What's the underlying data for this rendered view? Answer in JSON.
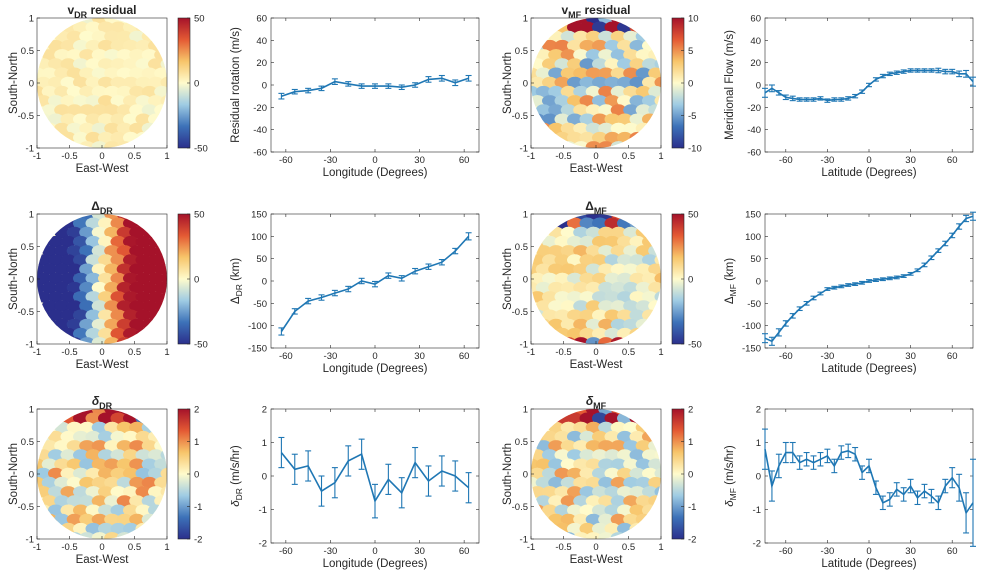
{
  "chart_data": [
    {
      "id": "vdr-map",
      "type": "heatmap",
      "title": "v",
      "title_sub": "DR",
      "title_suffix": " residual",
      "xlabel": "East-West",
      "ylabel": "South-North",
      "xticks": [
        "-1",
        "-0.5",
        "0",
        "0.5",
        "1"
      ],
      "yticks": [
        "1",
        "0.5",
        "0",
        "-0.5",
        "-1"
      ],
      "colorbar": {
        "min": -50,
        "max": 50,
        "ticks": [
          "50",
          "0",
          "-50"
        ]
      },
      "pattern": "uniform",
      "amplitude": 0.12,
      "bias": 0.06
    },
    {
      "id": "vdr-line",
      "type": "line",
      "ylabel": "Residual rotation (m/s)",
      "xlabel": "Longitude (Degrees)",
      "xlim": [
        -70,
        70
      ],
      "ylim": [
        -60,
        60
      ],
      "xticks": [
        -60,
        -30,
        0,
        30,
        60
      ],
      "yticks": [
        60,
        40,
        20,
        0,
        -20,
        -40,
        -60
      ],
      "x": [
        -63,
        -54,
        -45,
        -36,
        -27,
        -18,
        -9,
        0,
        9,
        18,
        27,
        36,
        45,
        54,
        63
      ],
      "y": [
        -10,
        -6,
        -5,
        -3,
        3,
        1,
        -1,
        -1,
        -1,
        -2,
        0,
        5,
        6,
        2,
        6
      ],
      "err": [
        2.5,
        2,
        2,
        2,
        2.5,
        2,
        2,
        2,
        2,
        2,
        2,
        2.5,
        2.5,
        2.5,
        2.5
      ]
    },
    {
      "id": "vmf-map",
      "type": "heatmap",
      "title": "v",
      "title_sub": "MF",
      "title_suffix": " residual",
      "xlabel": "East-West",
      "ylabel": "South-North",
      "xticks": [
        "-1",
        "-0.5",
        "0",
        "0.5",
        "1"
      ],
      "yticks": [
        "1",
        "0.5",
        "0",
        "-0.5",
        "-1"
      ],
      "colorbar": {
        "min": -10,
        "max": 10,
        "ticks": [
          "10",
          "5",
          "0",
          "-5",
          "-10"
        ]
      },
      "pattern": "noisy",
      "amplitude": 0.55,
      "bias": 0
    },
    {
      "id": "vmf-line",
      "type": "line",
      "ylabel": "Meridional Flow (m/s)",
      "xlabel": "Latitude (Degrees)",
      "xlim": [
        -75,
        75
      ],
      "ylim": [
        -60,
        60
      ],
      "xticks": [
        -60,
        -30,
        0,
        30,
        60
      ],
      "yticks": [
        60,
        40,
        20,
        0,
        -20,
        -40,
        -60
      ],
      "x": [
        -75,
        -70,
        -65,
        -60,
        -55,
        -50,
        -45,
        -40,
        -35,
        -30,
        -25,
        -20,
        -15,
        -10,
        -5,
        0,
        5,
        10,
        15,
        20,
        25,
        30,
        35,
        40,
        45,
        50,
        55,
        60,
        65,
        70,
        75
      ],
      "y": [
        -7,
        -3,
        -7,
        -11,
        -12,
        -13,
        -13,
        -13,
        -12,
        -14,
        -13,
        -13,
        -12,
        -10,
        -6,
        0,
        5,
        8,
        10,
        11,
        12,
        13,
        13,
        13,
        13,
        13,
        12,
        12,
        10,
        10,
        3
      ],
      "err": [
        4,
        3,
        2,
        2,
        2,
        1.5,
        1.5,
        1.5,
        1.5,
        1.5,
        1.5,
        1.5,
        1.5,
        1.5,
        1.5,
        1.5,
        1.5,
        1.5,
        1.5,
        1.5,
        1.5,
        1.5,
        1.5,
        1.5,
        1.5,
        2,
        2,
        2,
        2.5,
        3,
        4
      ]
    },
    {
      "id": "ddr-map",
      "type": "heatmap",
      "title": "Δ",
      "title_sub": "DR",
      "title_suffix": "",
      "xlabel": "East-West",
      "ylabel": "South-North",
      "xticks": [
        "-1",
        "-0.5",
        "0",
        "0.5",
        "1"
      ],
      "yticks": [
        "1",
        "0.5",
        "0",
        "-0.5",
        "-1"
      ],
      "colorbar": {
        "min": -50,
        "max": 50,
        "ticks": [
          "50",
          "0",
          "-50"
        ]
      },
      "pattern": "gradient-x",
      "amplitude": 0.12,
      "bias": 0
    },
    {
      "id": "ddr-line",
      "type": "line",
      "ylabel": "Δ",
      "ylabel_sub": "DR",
      "ylabel_suffix": " (km)",
      "xlabel": "Longitude (Degrees)",
      "xlim": [
        -70,
        70
      ],
      "ylim": [
        -150,
        150
      ],
      "xticks": [
        -60,
        -30,
        0,
        30,
        60
      ],
      "yticks": [
        150,
        100,
        50,
        0,
        -50,
        -100,
        -150
      ],
      "x": [
        -63,
        -54,
        -45,
        -36,
        -27,
        -18,
        -9,
        0,
        9,
        18,
        27,
        36,
        45,
        54,
        63
      ],
      "y": [
        -113,
        -68,
        -45,
        -37,
        -27,
        -18,
        0,
        -7,
        12,
        6,
        22,
        32,
        42,
        67,
        100
      ],
      "err": [
        8,
        6,
        6,
        6,
        6,
        6,
        6,
        6,
        6,
        6,
        6,
        6,
        6,
        6,
        8
      ]
    },
    {
      "id": "dmf-map",
      "type": "heatmap",
      "title": "Δ",
      "title_sub": "MF",
      "title_suffix": "",
      "xlabel": "East-West",
      "ylabel": "South-North",
      "xticks": [
        "-1",
        "-0.5",
        "0",
        "0.5",
        "1"
      ],
      "yticks": [
        "1",
        "0.5",
        "0",
        "-0.5",
        "-1"
      ],
      "colorbar": {
        "min": -50,
        "max": 50,
        "ticks": [
          "50",
          "0",
          "-50"
        ]
      },
      "pattern": "gradient-y",
      "amplitude": 0.35,
      "bias": 0.05
    },
    {
      "id": "dmf-line",
      "type": "line",
      "ylabel": "Δ",
      "ylabel_sub": "MF",
      "ylabel_suffix": " (km)",
      "xlabel": "Latitude (Degrees)",
      "xlim": [
        -75,
        75
      ],
      "ylim": [
        -150,
        150
      ],
      "xticks": [
        -60,
        -30,
        0,
        30,
        60
      ],
      "yticks": [
        150,
        100,
        50,
        0,
        -50,
        -100,
        -150
      ],
      "x": [
        -75,
        -70,
        -65,
        -60,
        -55,
        -50,
        -45,
        -40,
        -35,
        -30,
        -25,
        -20,
        -15,
        -10,
        -5,
        0,
        5,
        10,
        15,
        20,
        25,
        30,
        35,
        40,
        45,
        50,
        55,
        60,
        65,
        70,
        75
      ],
      "y": [
        -128,
        -135,
        -115,
        -95,
        -78,
        -62,
        -50,
        -38,
        -28,
        -18,
        -15,
        -12,
        -9,
        -7,
        -4,
        0,
        2,
        4,
        6,
        8,
        11,
        16,
        24,
        36,
        52,
        68,
        84,
        102,
        122,
        140,
        145
      ],
      "err": [
        10,
        9,
        8,
        6,
        5,
        4,
        4,
        4,
        3,
        3,
        3,
        3,
        3,
        3,
        3,
        3,
        3,
        3,
        3,
        3,
        3,
        3,
        3,
        4,
        4,
        4,
        5,
        5,
        6,
        7,
        9
      ]
    },
    {
      "id": "edr-map",
      "type": "heatmap",
      "title": "δ",
      "title_sub": "DR",
      "title_suffix": "",
      "xlabel": "East-West",
      "ylabel": "South-North",
      "xticks": [
        "-1",
        "-0.5",
        "0",
        "0.5",
        "1"
      ],
      "yticks": [
        "1",
        "0.5",
        "0",
        "-0.5",
        "-1"
      ],
      "colorbar": {
        "min": -2,
        "max": 2,
        "ticks": [
          "2",
          "1",
          "0",
          "-1",
          "-2"
        ]
      },
      "pattern": "noisy",
      "amplitude": 0.45,
      "bias": 0.08
    },
    {
      "id": "edr-line",
      "type": "line",
      "ylabel": "δ",
      "ylabel_sub": "DR",
      "ylabel_suffix": " (m/s/hr)",
      "xlabel": "Longitude (Degrees)",
      "xlim": [
        -70,
        70
      ],
      "ylim": [
        -2,
        2
      ],
      "xticks": [
        -60,
        -30,
        0,
        30,
        60
      ],
      "yticks": [
        2,
        1,
        0,
        -1,
        -2
      ],
      "x": [
        -63,
        -54,
        -45,
        -36,
        -27,
        -18,
        -9,
        0,
        9,
        18,
        27,
        36,
        45,
        54,
        63
      ],
      "y": [
        0.7,
        0.2,
        0.3,
        -0.45,
        -0.2,
        0.45,
        0.65,
        -0.75,
        -0.1,
        -0.5,
        0.4,
        -0.15,
        0.15,
        0,
        -0.35
      ],
      "err": [
        0.45,
        0.45,
        0.45,
        0.45,
        0.45,
        0.45,
        0.45,
        0.5,
        0.45,
        0.45,
        0.45,
        0.45,
        0.45,
        0.45,
        0.45
      ]
    },
    {
      "id": "emf-map",
      "type": "heatmap",
      "title": "δ",
      "title_sub": "MF",
      "title_suffix": "",
      "xlabel": "East-West",
      "ylabel": "South-North",
      "xticks": [
        "-1",
        "-0.5",
        "0",
        "0.5",
        "1"
      ],
      "yticks": [
        "1",
        "0.5",
        "0",
        "-0.5",
        "-1"
      ],
      "colorbar": {
        "min": -2,
        "max": 2,
        "ticks": [
          "2",
          "1",
          "0",
          "-1",
          "-2"
        ]
      },
      "pattern": "noisy",
      "amplitude": 0.45,
      "bias": 0.05
    },
    {
      "id": "emf-line",
      "type": "line",
      "ylabel": "δ",
      "ylabel_sub": "MF",
      "ylabel_suffix": " (m/s/hr)",
      "xlabel": "Latitude (Degrees)",
      "xlim": [
        -75,
        75
      ],
      "ylim": [
        -2,
        2
      ],
      "xticks": [
        -60,
        -30,
        0,
        30,
        60
      ],
      "yticks": [
        2,
        1,
        0,
        -1,
        -2
      ],
      "x": [
        -75,
        -70,
        -65,
        -60,
        -55,
        -50,
        -45,
        -40,
        -35,
        -30,
        -25,
        -20,
        -15,
        -10,
        -5,
        0,
        5,
        10,
        15,
        20,
        25,
        30,
        35,
        40,
        45,
        50,
        55,
        60,
        65,
        70,
        75
      ],
      "y": [
        0.8,
        -0.3,
        0.3,
        0.7,
        0.7,
        0.4,
        0.5,
        0.4,
        0.5,
        0.6,
        0.3,
        0.7,
        0.75,
        0.65,
        0.1,
        0.3,
        -0.35,
        -0.8,
        -0.7,
        -0.4,
        -0.55,
        -0.3,
        -0.65,
        -0.45,
        -0.6,
        -0.8,
        -0.3,
        -0.05,
        -0.35,
        -1.1,
        -0.8
      ],
      "err": [
        0.6,
        0.45,
        0.35,
        0.3,
        0.3,
        0.2,
        0.2,
        0.2,
        0.2,
        0.2,
        0.2,
        0.2,
        0.2,
        0.2,
        0.2,
        0.2,
        0.2,
        0.2,
        0.2,
        0.2,
        0.2,
        0.2,
        0.2,
        0.2,
        0.2,
        0.2,
        0.2,
        0.3,
        0.4,
        0.6,
        1.3
      ]
    }
  ],
  "colors": {
    "line": "#1f77b4",
    "axis": "#262626",
    "colormap": [
      "#2b2f8c",
      "#3d72b8",
      "#9fcbe3",
      "#fffbcc",
      "#f7c56a",
      "#e45a34",
      "#a5122a"
    ]
  }
}
